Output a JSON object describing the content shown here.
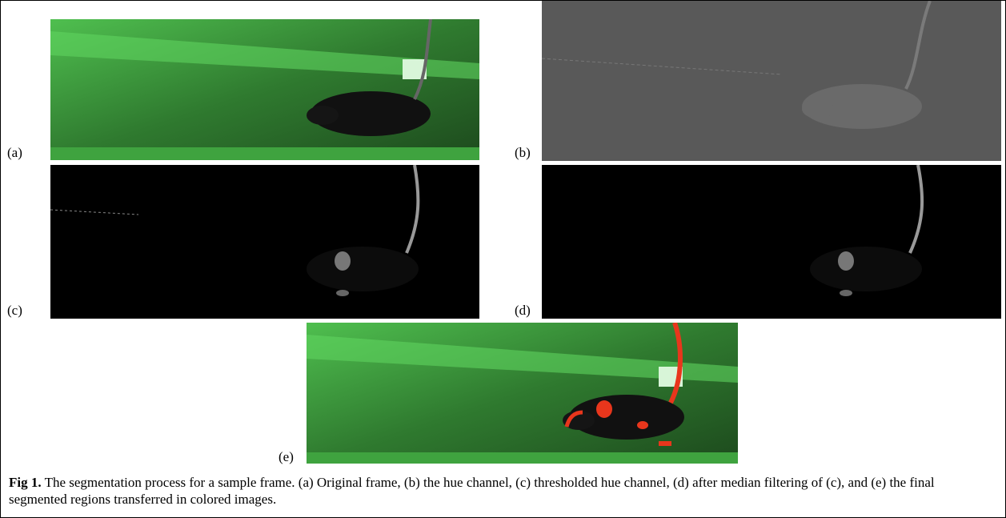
{
  "panels": [
    {
      "label": "(a)"
    },
    {
      "label": "(b)"
    },
    {
      "label": "(c)"
    },
    {
      "label": "(d)"
    },
    {
      "label": "(e)"
    }
  ],
  "caption": {
    "lead": "Fig 1.",
    "text": "The segmentation process for a sample frame. (a) Original frame, (b) the hue channel, (c) thresholded hue channel, (d) after median filtering of (c), and (e) the final segmented regions transferred in colored images."
  }
}
